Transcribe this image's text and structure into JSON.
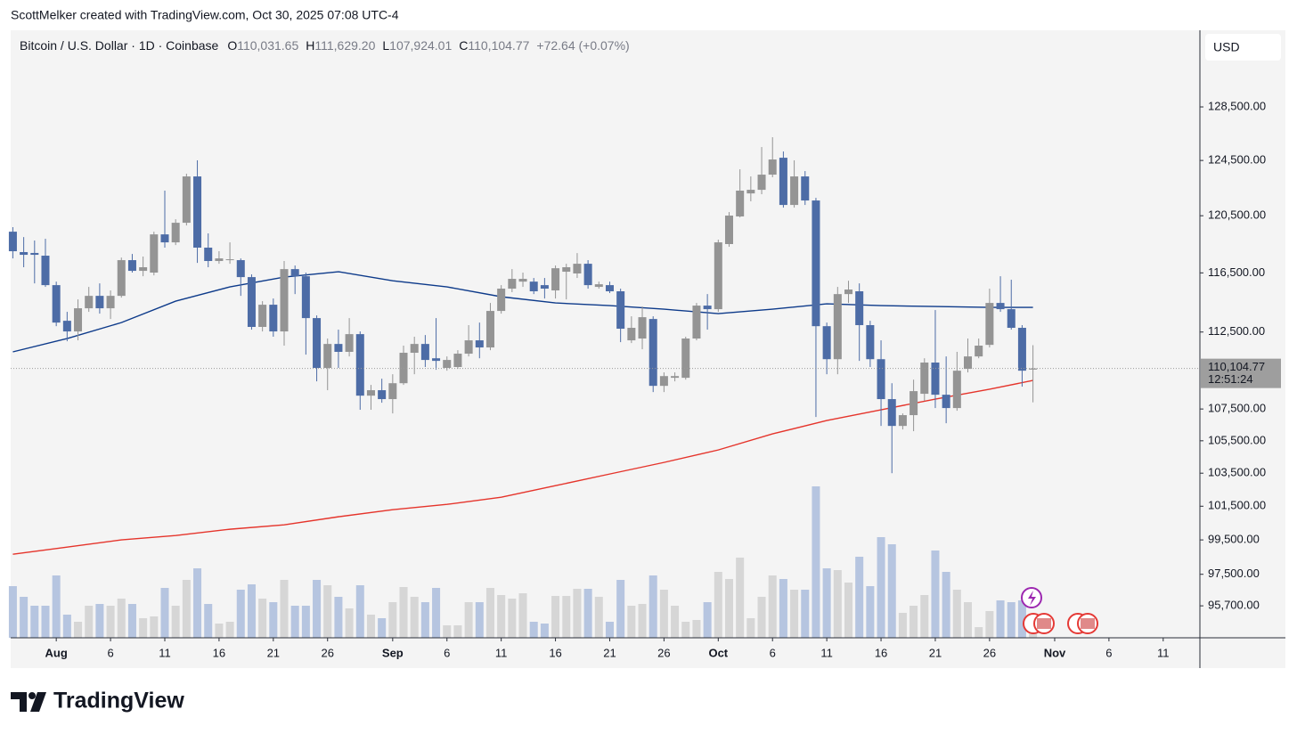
{
  "header": {
    "credit": "ScottMelker created with TradingView.com, Oct 30, 2025 07:08 UTC-4",
    "symbol": "Bitcoin / U.S. Dollar · 1D · Coinbase",
    "open_key": "O",
    "open": "110,031.65",
    "high_key": "H",
    "high": "111,629.20",
    "low_key": "L",
    "low": "107,924.01",
    "close_key": "C",
    "close": "110,104.77",
    "change": "+72.64 (+0.07%)",
    "currency": "USD",
    "brand": "TradingView"
  },
  "chart_data": {
    "type": "candlestick",
    "x": [
      0,
      1,
      2,
      3,
      4,
      5,
      6,
      7,
      8,
      9,
      10,
      11,
      12,
      13,
      14,
      15,
      16,
      17,
      18,
      19,
      20,
      21,
      22,
      23,
      24,
      25,
      26,
      27,
      28,
      29,
      30,
      31,
      32,
      33,
      34,
      35,
      36,
      37,
      38,
      39,
      40,
      41,
      42,
      43,
      44,
      45,
      46,
      47,
      48,
      49,
      50,
      51,
      52,
      53,
      54,
      55,
      56,
      57,
      58,
      59,
      60,
      61,
      62,
      63,
      64,
      65,
      66,
      67,
      68,
      69,
      70,
      71,
      72,
      73,
      74,
      75,
      76,
      77,
      78,
      79,
      80,
      81,
      82,
      83,
      84,
      85,
      86,
      87,
      88,
      89,
      90,
      91,
      92,
      93,
      94
    ],
    "open": [
      119370,
      117940,
      117880,
      117690,
      115660,
      113250,
      112540,
      114090,
      114930,
      114090,
      114930,
      117380,
      116640,
      116520,
      119180,
      118620,
      120000,
      123330,
      118250,
      117320,
      117380,
      117380,
      116210,
      112840,
      114330,
      112540,
      116760,
      116270,
      113430,
      110140,
      111710,
      111190,
      112360,
      108350,
      108700,
      108130,
      109150,
      111130,
      111710,
      110770,
      110140,
      110200,
      111070,
      111950,
      111480,
      113910,
      115420,
      115900,
      115900,
      115660,
      115300,
      116580,
      116460,
      117130,
      115540,
      115660,
      115240,
      111950,
      112070,
      113370,
      108980,
      109500,
      109500,
      112070,
      114270,
      114030,
      118500,
      120450,
      122100,
      122360,
      123460,
      124700,
      121270,
      123330,
      121590,
      112890,
      110710,
      115050,
      115240,
      112960,
      110710,
      108130,
      106430,
      107110,
      108470,
      110490,
      108410,
      107560,
      110080,
      110890,
      111650,
      114450,
      114030,
      112780,
      110031.65
    ],
    "high": [
      119690,
      118990,
      118750,
      118870,
      115900,
      113850,
      114690,
      115540,
      115780,
      115300,
      117560,
      117810,
      117630,
      119370,
      122300,
      120250,
      123530,
      124510,
      119250,
      118000,
      118620,
      117500,
      116400,
      114570,
      114750,
      117320,
      117010,
      116520,
      113610,
      112070,
      112660,
      113430,
      112540,
      109040,
      109440,
      109730,
      111600,
      112190,
      112300,
      113430,
      110890,
      111300,
      112960,
      113130,
      114450,
      115660,
      116760,
      116520,
      116150,
      116150,
      117010,
      117130,
      117870,
      117380,
      115900,
      115900,
      115420,
      113550,
      114210,
      113550,
      109850,
      109850,
      112190,
      114450,
      115050,
      118810,
      120760,
      123850,
      123330,
      125490,
      126220,
      125160,
      124510,
      123720,
      121780,
      113130,
      115540,
      115960,
      115780,
      113250,
      111950,
      109150,
      107220,
      109380,
      110770,
      113970,
      110890,
      111190,
      112070,
      112070,
      115420,
      116270,
      116030,
      112960,
      111629.2
    ],
    "low": [
      117500,
      116890,
      115780,
      115540,
      112890,
      111890,
      111950,
      113850,
      113730,
      113370,
      114810,
      116520,
      116270,
      116330,
      118250,
      118430,
      119810,
      117190,
      116890,
      117130,
      117130,
      114930,
      112660,
      112540,
      112190,
      111600,
      115050,
      111010,
      109270,
      108700,
      110140,
      110890,
      107450,
      107450,
      107900,
      107220,
      109040,
      109730,
      110200,
      110020,
      109960,
      110080,
      110890,
      110770,
      111300,
      113730,
      115180,
      115540,
      115050,
      114750,
      114750,
      114690,
      116150,
      115420,
      115420,
      115120,
      111830,
      111770,
      111360,
      108580,
      108580,
      109270,
      109380,
      111950,
      112660,
      113850,
      118310,
      120380,
      121530,
      122040,
      123270,
      121080,
      121080,
      121270,
      106990,
      109730,
      109730,
      114450,
      110600,
      110200,
      106430,
      103500,
      106210,
      106100,
      108010,
      107560,
      106600,
      107390,
      109850,
      110770,
      111480,
      113850,
      112660,
      108930,
      107924.01
    ],
    "close": [
      118000,
      117750,
      117750,
      115660,
      113130,
      112540,
      114090,
      114930,
      114090,
      114930,
      117380,
      116640,
      116890,
      119180,
      118620,
      120000,
      123330,
      118250,
      117320,
      117500,
      117440,
      116210,
      112840,
      114330,
      112540,
      116760,
      116270,
      113430,
      110140,
      111710,
      111190,
      112360,
      108350,
      108700,
      108130,
      109150,
      111130,
      111710,
      110660,
      110600,
      110660,
      111070,
      111950,
      111480,
      113910,
      115420,
      116090,
      116090,
      115240,
      115420,
      116820,
      116890,
      117130,
      115660,
      115720,
      115240,
      112720,
      112780,
      113490,
      108980,
      109610,
      109610,
      112070,
      114270,
      114030,
      118620,
      120510,
      122300,
      122360,
      123460,
      124570,
      121270,
      123330,
      121590,
      112890,
      110710,
      115050,
      115360,
      112960,
      110710,
      108130,
      106430,
      107110,
      108640,
      110490,
      108410,
      107560,
      109960,
      110890,
      111600,
      114450,
      114030,
      112780,
      109960,
      110104.77
    ],
    "volume": [
      58,
      46,
      36,
      36,
      70,
      26,
      18,
      36,
      38,
      36,
      44,
      38,
      22,
      24,
      56,
      36,
      65,
      78,
      38,
      16,
      18,
      54,
      60,
      44,
      40,
      65,
      36,
      36,
      65,
      59,
      46,
      33,
      59,
      26,
      22,
      40,
      57,
      46,
      40,
      56,
      14,
      14,
      40,
      40,
      56,
      48,
      44,
      50,
      18,
      16,
      47,
      47,
      55,
      55,
      46,
      18,
      65,
      36,
      38,
      70,
      54,
      36,
      18,
      20,
      40,
      74,
      66,
      90,
      22,
      46,
      70,
      66,
      54,
      54,
      170,
      78,
      76,
      62,
      91,
      58,
      113,
      105,
      28,
      36,
      48,
      98,
      74,
      54,
      40,
      12,
      30,
      42,
      40,
      42,
      26
    ],
    "vlim": [
      0,
      200
    ],
    "up_color": "#949494",
    "down_color": "#4d6ca6",
    "volume_up_color": "#d6d6d6",
    "volume_down_color": "#b6c5e0",
    "lines": [
      {
        "color": "#0d3a8a",
        "x": [
          0,
          5,
          10,
          15,
          20,
          25,
          30,
          35,
          40,
          45,
          50,
          55,
          60,
          65,
          70,
          75,
          80,
          85,
          90,
          94
        ],
        "values": [
          111190,
          112070,
          113130,
          114570,
          115540,
          116210,
          116580,
          115960,
          115540,
          114870,
          114450,
          114270,
          114030,
          113730,
          114030,
          114390,
          114270,
          114210,
          114150,
          114150
        ]
      },
      {
        "color": "#e5342b",
        "x": [
          0,
          5,
          10,
          15,
          20,
          25,
          30,
          35,
          40,
          45,
          50,
          55,
          60,
          65,
          70,
          75,
          80,
          85,
          90,
          94
        ],
        "values": [
          98663,
          99080,
          99500,
          99760,
          100130,
          100390,
          100870,
          101290,
          101610,
          102040,
          102740,
          103450,
          104160,
          104930,
          105930,
          106770,
          107450,
          108130,
          108760,
          109330
        ]
      }
    ],
    "xlim": [
      -0.2,
      109.3
    ],
    "xticks": [
      {
        "value": 4,
        "label": "Aug"
      },
      {
        "value": 9,
        "label": "6"
      },
      {
        "value": 14,
        "label": "11"
      },
      {
        "value": 19,
        "label": "16"
      },
      {
        "value": 24,
        "label": "21"
      },
      {
        "value": 29,
        "label": "26"
      },
      {
        "value": 35,
        "label": "Sep"
      },
      {
        "value": 40,
        "label": "6"
      },
      {
        "value": 45,
        "label": "11"
      },
      {
        "value": 50,
        "label": "16"
      },
      {
        "value": 55,
        "label": "21"
      },
      {
        "value": 60,
        "label": "26"
      },
      {
        "value": 65,
        "label": "Oct"
      },
      {
        "value": 70,
        "label": "6"
      },
      {
        "value": 75,
        "label": "11"
      },
      {
        "value": 80,
        "label": "16"
      },
      {
        "value": 85,
        "label": "21"
      },
      {
        "value": 90,
        "label": "26"
      },
      {
        "value": 96,
        "label": "Nov"
      },
      {
        "value": 101,
        "label": "6"
      },
      {
        "value": 106,
        "label": "11"
      }
    ],
    "ylim": [
      93910,
      134450
    ],
    "log_scale": true,
    "yticks": [
      {
        "value": 128500,
        "label": "128,500.00"
      },
      {
        "value": 124500,
        "label": "124,500.00"
      },
      {
        "value": 120500,
        "label": "120,500.00"
      },
      {
        "value": 116500,
        "label": "116,500.00"
      },
      {
        "value": 112500,
        "label": "112,500.00"
      },
      {
        "value": 107500,
        "label": "107,500.00"
      },
      {
        "value": 105500,
        "label": "105,500.00"
      },
      {
        "value": 103500,
        "label": "103,500.00"
      },
      {
        "value": 101500,
        "label": "101,500.00"
      },
      {
        "value": 99500,
        "label": "99,500.00"
      },
      {
        "value": 97500,
        "label": "97,500.00"
      },
      {
        "value": 95700,
        "label": "95,700.00"
      }
    ],
    "last_price": {
      "value": 110104.77,
      "label": "110,104.77"
    },
    "countdown": "12:51:24"
  }
}
